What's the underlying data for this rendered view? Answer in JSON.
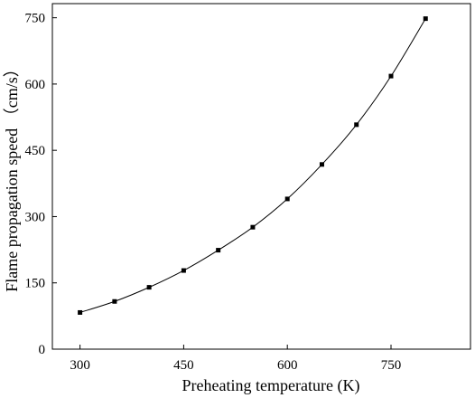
{
  "chart_data": {
    "type": "line",
    "title": "",
    "xlabel": "Preheating temperature (K)",
    "ylabel": "Flame propagation speed （cm/s）",
    "xlim": [
      260,
      865
    ],
    "ylim": [
      0,
      782
    ],
    "xticks": [
      "300",
      "450",
      "600",
      "750"
    ],
    "yticks": [
      "0",
      "150",
      "300",
      "450",
      "600",
      "750"
    ],
    "grid": false,
    "legend": "none",
    "series": [
      {
        "x": [
          300,
          350,
          400,
          450,
          500,
          550,
          600,
          650,
          700,
          750,
          800
        ],
        "y": [
          83,
          108,
          140,
          178,
          224,
          276,
          340,
          418,
          508,
          618,
          748
        ],
        "color": "#000000",
        "marker": "square"
      }
    ]
  }
}
